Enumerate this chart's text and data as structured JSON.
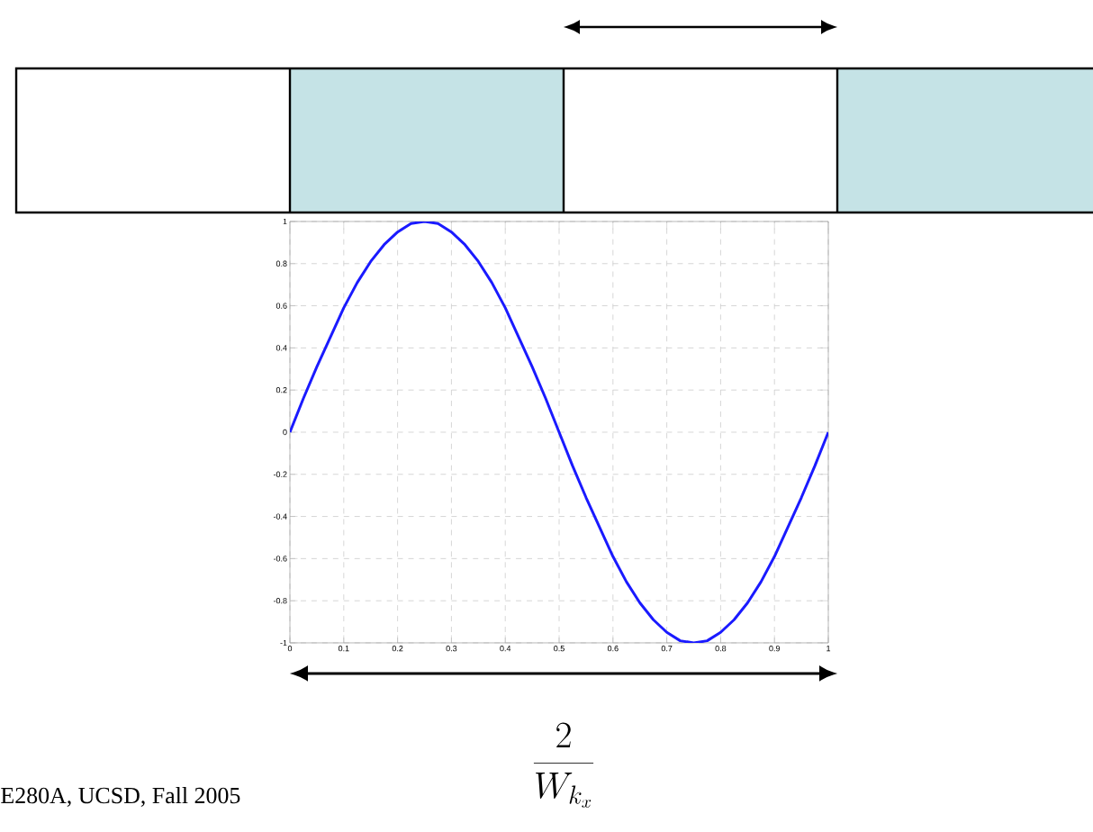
{
  "chart_data": {
    "type": "line",
    "x": [
      0,
      0.025,
      0.05,
      0.075,
      0.1,
      0.125,
      0.15,
      0.175,
      0.2,
      0.225,
      0.25,
      0.275,
      0.3,
      0.325,
      0.35,
      0.375,
      0.4,
      0.425,
      0.45,
      0.475,
      0.5,
      0.525,
      0.55,
      0.575,
      0.6,
      0.625,
      0.65,
      0.675,
      0.7,
      0.725,
      0.75,
      0.775,
      0.8,
      0.825,
      0.85,
      0.875,
      0.9,
      0.925,
      0.95,
      0.975,
      1
    ],
    "series": [
      {
        "color": "#1a1aff",
        "values": [
          0,
          0.16,
          0.31,
          0.45,
          0.59,
          0.71,
          0.81,
          0.89,
          0.95,
          0.99,
          1,
          0.99,
          0.95,
          0.89,
          0.81,
          0.71,
          0.59,
          0.45,
          0.31,
          0.16,
          0,
          -0.16,
          -0.31,
          -0.45,
          -0.59,
          -0.71,
          -0.81,
          -0.89,
          -0.95,
          -0.99,
          -1,
          -0.99,
          -0.95,
          -0.89,
          -0.81,
          -0.71,
          -0.59,
          -0.45,
          -0.31,
          -0.16,
          0
        ]
      }
    ],
    "xlim": [
      0,
      1
    ],
    "ylim": [
      -1,
      1
    ],
    "xticks": [
      0,
      0.1,
      0.2,
      0.3,
      0.4,
      0.5,
      0.6,
      0.7,
      0.8,
      0.9,
      1
    ],
    "yticks": [
      -1,
      -0.8,
      -0.6,
      -0.4,
      -0.2,
      0,
      0.2,
      0.4,
      0.6,
      0.8,
      1
    ],
    "grid": true,
    "marker": "none",
    "line_style": "solid",
    "annotations": [
      "E280A, UCSD, Fall 2005",
      "\\frac{2}{W_{k_x}}"
    ]
  }
}
